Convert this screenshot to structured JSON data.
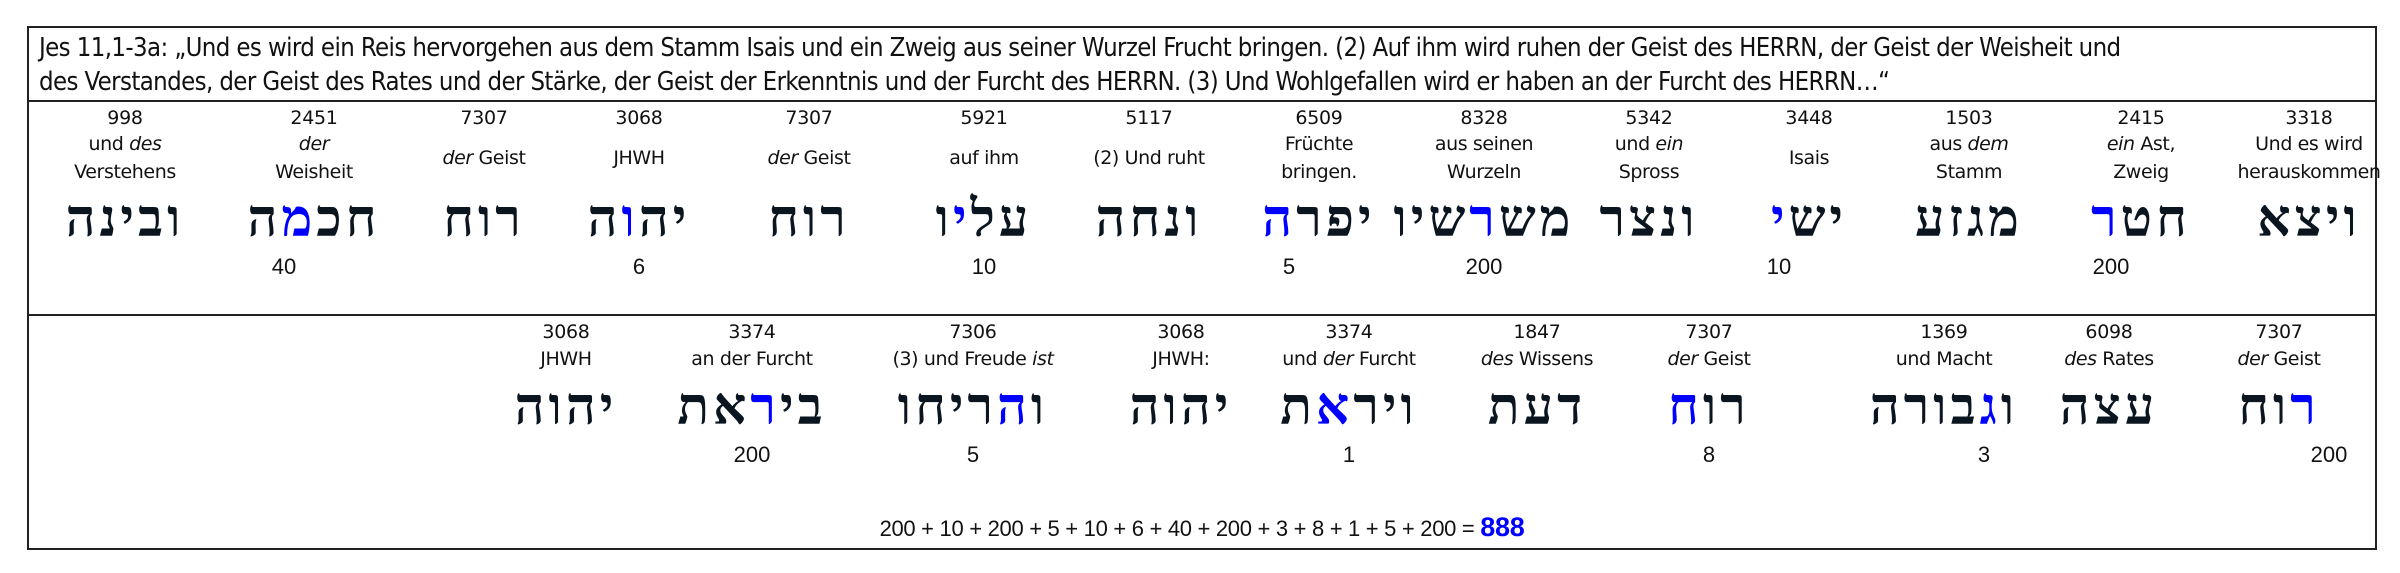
{
  "verse": {
    "line1": "Jes 11,1-3a: „Und es wird ein Reis hervorgehen aus dem Stamm Isais und ein Zweig aus seiner Wurzel Frucht bringen. (2) Auf ihm wird ruhen der Geist des HERRN, der Geist der Weisheit und",
    "line2": "des Verstandes, der Geist des Rates und der Stärke, der Geist der Erkenntnis und der Furcht des HERRN. (3) Und Wohlgefallen wird er haben an der Furcht des HERRN…“"
  },
  "row1": [
    {
      "strong": "998",
      "gloss1_pre": "und ",
      "gloss1_it": "des",
      "gloss1_post": "",
      "gloss2": "Verstehens",
      "heb_pre": "ובינה",
      "heb_hl": "",
      "heb_post": "",
      "value": ""
    },
    {
      "strong": "2451",
      "gloss1_pre": "",
      "gloss1_it": "der",
      "gloss1_post": "",
      "gloss2": "Weisheit",
      "heb_pre": "חכ",
      "heb_hl": "מ",
      "heb_post": "ה",
      "value": "40"
    },
    {
      "strong": "7307",
      "gloss1_pre": "",
      "gloss1_it": "der",
      "gloss1_post": " Geist",
      "gloss2": "",
      "heb_pre": "רוח",
      "heb_hl": "",
      "heb_post": "",
      "value": ""
    },
    {
      "strong": "3068",
      "gloss1_pre": "JHWH",
      "gloss1_it": "",
      "gloss1_post": "",
      "gloss2": "",
      "heb_pre": "יה",
      "heb_hl": "ו",
      "heb_post": "ה",
      "value": "6"
    },
    {
      "strong": "7307",
      "gloss1_pre": "",
      "gloss1_it": "der",
      "gloss1_post": " Geist",
      "gloss2": "",
      "heb_pre": "רוח",
      "heb_hl": "",
      "heb_post": "",
      "value": ""
    },
    {
      "strong": "5921",
      "gloss1_pre": "auf ihm",
      "gloss1_it": "",
      "gloss1_post": "",
      "gloss2": "",
      "heb_pre": "על",
      "heb_hl": "י",
      "heb_post": "ו",
      "value": "10"
    },
    {
      "strong": "5117",
      "gloss1_pre": "(2) Und ruht",
      "gloss1_it": "",
      "gloss1_post": "",
      "gloss2": "",
      "heb_pre": "ונחה",
      "heb_hl": "",
      "heb_post": "",
      "value": ""
    },
    {
      "strong": "6509",
      "gloss1_pre": "Früchte",
      "gloss1_it": "",
      "gloss1_post": "",
      "gloss2": "bringen.",
      "heb_pre": "יפר",
      "heb_hl": "ה",
      "heb_post": "",
      "value": "5"
    },
    {
      "strong": "8328",
      "gloss1_pre": "aus seinen",
      "gloss1_it": "",
      "gloss1_post": "",
      "gloss2": "Wurzeln",
      "heb_pre": "מש",
      "heb_hl": "ר",
      "heb_post": "שיו",
      "value": "200"
    },
    {
      "strong": "5342",
      "gloss1_pre": "und ",
      "gloss1_it": "ein",
      "gloss1_post": "",
      "gloss2": "Spross",
      "heb_pre": "ונצר",
      "heb_hl": "",
      "heb_post": "",
      "value": ""
    },
    {
      "strong": "3448",
      "gloss1_pre": "Isais",
      "gloss1_it": "",
      "gloss1_post": "",
      "gloss2": "",
      "heb_pre": "יש",
      "heb_hl": "י",
      "heb_post": "",
      "value": "10"
    },
    {
      "strong": "1503",
      "gloss1_pre": "aus ",
      "gloss1_it": "dem",
      "gloss1_post": "",
      "gloss2": "Stamm",
      "heb_pre": "מגזע",
      "heb_hl": "",
      "heb_post": "",
      "value": ""
    },
    {
      "strong": "2415",
      "gloss1_pre": "",
      "gloss1_it": "ein",
      "gloss1_post": " Ast,",
      "gloss2": "Zweig",
      "heb_pre": "חט",
      "heb_hl": "ר",
      "heb_post": "",
      "value": "200"
    },
    {
      "strong": "3318",
      "gloss1_pre": "Und es wird",
      "gloss1_it": "",
      "gloss1_post": "",
      "gloss2": "herauskommen",
      "heb_pre": "ויצא",
      "heb_hl": "",
      "heb_post": "",
      "value": ""
    }
  ],
  "row2": [
    {
      "strong": "3068",
      "gloss1_pre": "JHWH",
      "gloss1_it": "",
      "gloss1_post": "",
      "heb_pre": "יהוה",
      "heb_hl": "",
      "heb_post": "",
      "value": ""
    },
    {
      "strong": "3374",
      "gloss1_pre": "an der Furcht",
      "gloss1_it": "",
      "gloss1_post": "",
      "heb_pre": "בי",
      "heb_hl": "ר",
      "heb_post": "את",
      "value": "200"
    },
    {
      "strong": "7306",
      "gloss1_pre": "(3) und Freude ",
      "gloss1_it": "ist",
      "gloss1_post": "",
      "heb_pre": "ו",
      "heb_hl": "ה",
      "heb_post": "ריחו",
      "value": "5"
    },
    {
      "strong": "3068",
      "gloss1_pre": "JHWH:",
      "gloss1_it": "",
      "gloss1_post": "",
      "heb_pre": "יהוה",
      "heb_hl": "",
      "heb_post": "",
      "value": ""
    },
    {
      "strong": "3374",
      "gloss1_pre": "und ",
      "gloss1_it": "der",
      "gloss1_post": " Furcht",
      "heb_pre": "ויר",
      "heb_hl": "א",
      "heb_post": "ת",
      "value": "1"
    },
    {
      "strong": "1847",
      "gloss1_pre": "",
      "gloss1_it": "des",
      "gloss1_post": " Wissens",
      "heb_pre": "דעת",
      "heb_hl": "",
      "heb_post": "",
      "value": ""
    },
    {
      "strong": "7307",
      "gloss1_pre": "",
      "gloss1_it": "der",
      "gloss1_post": " Geist",
      "heb_pre": "רו",
      "heb_hl": "ח",
      "heb_post": "",
      "value": "8"
    },
    {
      "strong": "1369",
      "gloss1_pre": "und Macht",
      "gloss1_it": "",
      "gloss1_post": "",
      "heb_pre": "ו",
      "heb_hl": "ג",
      "heb_post": "בורה",
      "value": "3"
    },
    {
      "strong": "6098",
      "gloss1_pre": "",
      "gloss1_it": "des",
      "gloss1_post": " Rates",
      "heb_pre": "עצה",
      "heb_hl": "",
      "heb_post": "",
      "value": ""
    },
    {
      "strong": "7307",
      "gloss1_pre": "",
      "gloss1_it": "der",
      "gloss1_post": " Geist",
      "heb_pre": "",
      "heb_hl": "ר",
      "heb_post": "וח",
      "value": "200"
    }
  ],
  "sum": {
    "expression": "200 + 10 + 200 + 5 + 10 + 6 + 40 + 200 + 3 + 8 + 1 + 5 + 200 = ",
    "total": "888"
  },
  "colors": {
    "highlight": "#0000ff",
    "hebrew": "#0b1520",
    "border": "#222222"
  }
}
